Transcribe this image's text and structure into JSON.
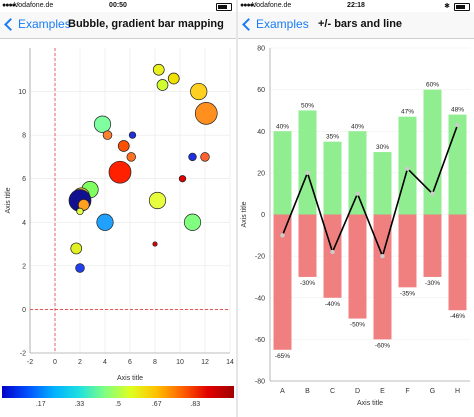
{
  "left": {
    "status": {
      "carrier": "Vodafone.de",
      "time": "00:50"
    },
    "nav": {
      "back_label": "Examples",
      "title": "Bubble, gradient bar mapping"
    },
    "colorbar_ticks": [
      ".17",
      ".33",
      ".5",
      ".67",
      ".83"
    ]
  },
  "right": {
    "status": {
      "carrier": "Vodafone.de",
      "time": "22:18"
    },
    "nav": {
      "back_label": "Examples",
      "title": "+/- bars and line"
    }
  },
  "colors": {
    "accent": "#1a7cf5",
    "positive": "#90ee90",
    "negative": "#f08080",
    "zero_line": "#e04040"
  },
  "chart_data": [
    {
      "type": "scatter",
      "subtype": "bubble",
      "xlabel": "Axis title",
      "ylabel": "Axis title",
      "xlim": [
        -2,
        14
      ],
      "ylim": [
        -2,
        12
      ],
      "xticks": [
        -2,
        0,
        2,
        4,
        6,
        8,
        10,
        12,
        14
      ],
      "yticks": [
        -2,
        0,
        2,
        4,
        6,
        8,
        10
      ],
      "reference_lines": {
        "x": 0,
        "y": 0
      },
      "points": [
        {
          "x": 8.3,
          "y": 11.0,
          "r": 1,
          "color": "#e8f020"
        },
        {
          "x": 8.6,
          "y": 10.3,
          "r": 1,
          "color": "#d0ff30"
        },
        {
          "x": 9.5,
          "y": 10.6,
          "r": 1,
          "color": "#f0e000"
        },
        {
          "x": 11.5,
          "y": 10.0,
          "r": 1.5,
          "color": "#ffd020"
        },
        {
          "x": 12.1,
          "y": 9.0,
          "r": 2,
          "color": "#ff9020"
        },
        {
          "x": 3.8,
          "y": 8.5,
          "r": 1.5,
          "color": "#80ffa0"
        },
        {
          "x": 4.2,
          "y": 8.0,
          "r": 0.8,
          "color": "#ff8030"
        },
        {
          "x": 6.2,
          "y": 8.0,
          "r": 0.6,
          "color": "#2030e0"
        },
        {
          "x": 5.5,
          "y": 7.5,
          "r": 1,
          "color": "#ff5000"
        },
        {
          "x": 6.1,
          "y": 7.0,
          "r": 0.8,
          "color": "#ff7020"
        },
        {
          "x": 11.0,
          "y": 7.0,
          "r": 0.7,
          "color": "#2030e0"
        },
        {
          "x": 12.0,
          "y": 7.0,
          "r": 0.8,
          "color": "#ff6030"
        },
        {
          "x": 5.2,
          "y": 6.3,
          "r": 2,
          "color": "#ff2000"
        },
        {
          "x": 10.2,
          "y": 6.0,
          "r": 0.6,
          "color": "#e00000"
        },
        {
          "x": 2.8,
          "y": 5.5,
          "r": 1.5,
          "color": "#80ff60"
        },
        {
          "x": 2.1,
          "y": 5.2,
          "r": 1.5,
          "color": "#ffd040"
        },
        {
          "x": 2.0,
          "y": 5.0,
          "r": 2,
          "color": "#101090"
        },
        {
          "x": 2.3,
          "y": 4.8,
          "r": 1,
          "color": "#ffa020"
        },
        {
          "x": 2.0,
          "y": 4.5,
          "r": 0.6,
          "color": "#e0ff40"
        },
        {
          "x": 8.2,
          "y": 5.0,
          "r": 1.5,
          "color": "#e8ff40"
        },
        {
          "x": 4.0,
          "y": 4.0,
          "r": 1.5,
          "color": "#20a0ff"
        },
        {
          "x": 11.0,
          "y": 4.0,
          "r": 1.5,
          "color": "#80ff80"
        },
        {
          "x": 1.7,
          "y": 2.8,
          "r": 1,
          "color": "#e0f020"
        },
        {
          "x": 8.0,
          "y": 3.0,
          "r": 0.4,
          "color": "#e00000"
        },
        {
          "x": 2.0,
          "y": 1.9,
          "r": 0.8,
          "color": "#2040f0"
        }
      ]
    },
    {
      "type": "bar",
      "subtype": "positive-negative bars with line",
      "xlabel": "Axis title",
      "ylabel": "Axis title",
      "categories": [
        "A",
        "B",
        "C",
        "D",
        "E",
        "F",
        "G",
        "H"
      ],
      "ylim": [
        -80,
        80
      ],
      "yticks": [
        -80,
        -60,
        -40,
        -20,
        0,
        20,
        40,
        60,
        80
      ],
      "series": [
        {
          "values": [
            40,
            50,
            35,
            40,
            30,
            47,
            60,
            48
          ],
          "labels": [
            "40%",
            "50%",
            "35%",
            "40%",
            "30%",
            "47%",
            "60%",
            "48%"
          ],
          "color": "#90ee90"
        },
        {
          "values": [
            -65,
            -30,
            -40,
            -50,
            -60,
            -35,
            -30,
            -46
          ],
          "labels": [
            "-65%",
            "-30%",
            "-40%",
            "-50%",
            "-60%",
            "-35%",
            "-30%",
            "-46%"
          ],
          "color": "#f08080"
        },
        {
          "type": "line",
          "values": [
            -10,
            20,
            -18,
            10,
            -20,
            22,
            10,
            43
          ],
          "color": "#000000"
        }
      ]
    }
  ]
}
